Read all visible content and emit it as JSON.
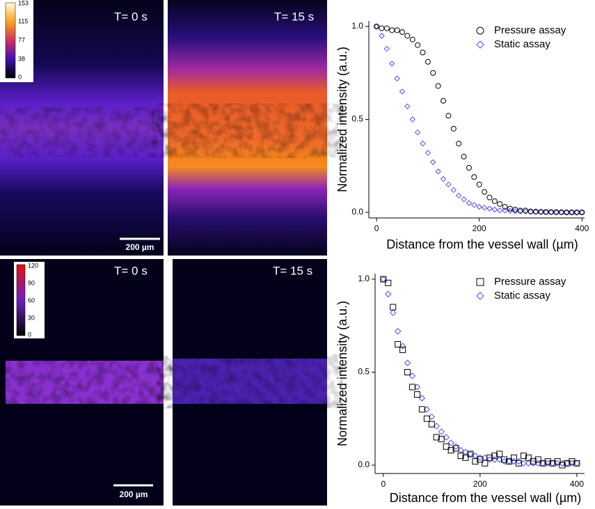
{
  "images": {
    "top": {
      "left_label": "T= 0 s",
      "right_label": "T= 15 s",
      "scale_bar": "200 µm",
      "colorbar_ticks": [
        153,
        115,
        77,
        38,
        0
      ]
    },
    "bottom": {
      "left_label": "T= 0 s",
      "right_label": "T= 15 s",
      "scale_bar": "200 µm",
      "colorbar_ticks": [
        120,
        90,
        60,
        30,
        0
      ]
    }
  },
  "chart_data": [
    {
      "type": "scatter",
      "xlabel": "Distance from the vessel wall (µm)",
      "ylabel": "Normalized intensity (a.u.)",
      "xlim": [
        -15,
        405
      ],
      "ylim": [
        -0.03,
        1.03
      ],
      "xticks": [
        0,
        200,
        400
      ],
      "yticks": [
        {
          "value": 0,
          "label": "0.0"
        },
        0.5,
        {
          "value": 1,
          "label": "1.0"
        }
      ],
      "legend": "upper right",
      "x": [
        0,
        10,
        20,
        30,
        40,
        50,
        60,
        70,
        80,
        90,
        100,
        110,
        120,
        130,
        140,
        150,
        160,
        170,
        180,
        190,
        200,
        210,
        220,
        230,
        240,
        250,
        260,
        270,
        280,
        290,
        300,
        310,
        320,
        330,
        340,
        350,
        360,
        370,
        380,
        390,
        400
      ],
      "series": [
        {
          "name": "Pressure assay",
          "color": "#000000",
          "marker": "circle",
          "values": [
            1.0,
            0.99,
            0.99,
            0.98,
            0.98,
            0.97,
            0.95,
            0.93,
            0.9,
            0.86,
            0.81,
            0.75,
            0.68,
            0.6,
            0.52,
            0.45,
            0.37,
            0.3,
            0.24,
            0.19,
            0.15,
            0.11,
            0.08,
            0.06,
            0.045,
            0.03,
            0.02,
            0.015,
            0.01,
            0.01,
            0.005,
            0.004,
            0.003,
            0.002,
            0.002,
            0.001,
            0.001,
            0,
            0,
            0,
            0
          ]
        },
        {
          "name": "Static assay",
          "color": "#4b4bff",
          "marker": "diamond",
          "values": [
            1.0,
            0.95,
            0.88,
            0.8,
            0.72,
            0.65,
            0.57,
            0.5,
            0.43,
            0.37,
            0.32,
            0.27,
            0.22,
            0.18,
            0.15,
            0.12,
            0.09,
            0.07,
            0.05,
            0.04,
            0.03,
            0.025,
            0.02,
            0.015,
            0.01,
            0.01,
            0.008,
            0.006,
            0.005,
            0.004,
            0.003,
            0.002,
            0.002,
            0.001,
            0.001,
            0,
            0,
            0,
            0,
            0,
            0
          ]
        }
      ]
    },
    {
      "type": "scatter",
      "xlabel": "Distance from the vessel wall (µm)",
      "ylabel": "Normalized intensity (a.u.)",
      "xlim": [
        -17,
        416
      ],
      "ylim": [
        -0.045,
        1.03
      ],
      "xticks": [
        0,
        200,
        400
      ],
      "yticks": [
        {
          "value": 0,
          "label": "0.0"
        },
        0.5,
        {
          "value": 1,
          "label": "1.0"
        }
      ],
      "legend": "upper right",
      "x": [
        0,
        10,
        20,
        30,
        40,
        50,
        60,
        70,
        80,
        90,
        100,
        110,
        120,
        130,
        140,
        150,
        160,
        170,
        180,
        190,
        200,
        210,
        220,
        230,
        240,
        250,
        260,
        270,
        280,
        290,
        300,
        310,
        320,
        330,
        340,
        350,
        360,
        370,
        380,
        390,
        400
      ],
      "series": [
        {
          "name": "Pressure assay",
          "color": "#000000",
          "marker": "square",
          "values": [
            1.0,
            0.98,
            0.85,
            0.65,
            0.62,
            0.5,
            0.42,
            0.38,
            0.3,
            0.25,
            0.22,
            0.15,
            0.14,
            0.1,
            0.08,
            0.09,
            0.05,
            0.04,
            0.06,
            0.02,
            0.03,
            0.01,
            0.04,
            0.05,
            0.06,
            0.03,
            0.02,
            0.04,
            0.01,
            0.05,
            0.04,
            0.02,
            0.03,
            0.01,
            0.02,
            0.01,
            0.02,
            0,
            0.01,
            0.02,
            0.01
          ]
        },
        {
          "name": "Static assay",
          "color": "#4b4bff",
          "marker": "diamond",
          "values": [
            1.0,
            0.92,
            0.82,
            0.72,
            0.64,
            0.55,
            0.48,
            0.42,
            0.36,
            0.3,
            0.26,
            0.21,
            0.18,
            0.15,
            0.12,
            0.1,
            0.08,
            0.07,
            0.06,
            0.05,
            0.04,
            0.04,
            0.03,
            0.03,
            0.03,
            0.02,
            0.02,
            0.02,
            0.02,
            0.01,
            0.01,
            0.01,
            0.01,
            0.01,
            0.01,
            0.01,
            0.01,
            0.01,
            0.01,
            0.01,
            0.01
          ]
        }
      ]
    }
  ]
}
